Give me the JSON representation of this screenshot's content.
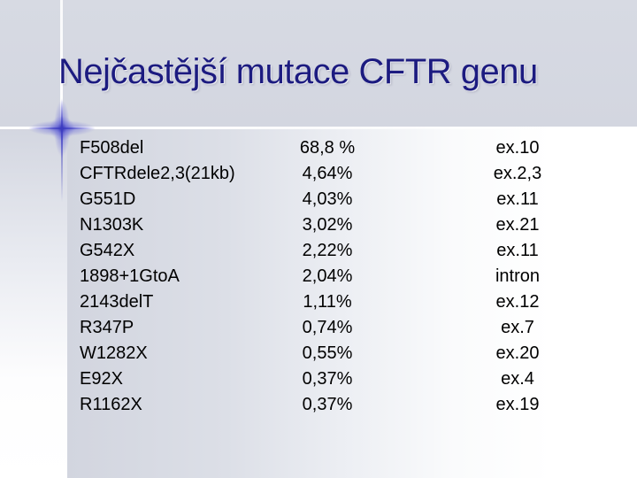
{
  "slide": {
    "title": "Nejčastější mutace CFTR genu",
    "table": {
      "rows": [
        {
          "mutation": "F508del",
          "frequency": "68,8 %",
          "location": "ex.10"
        },
        {
          "mutation": "CFTRdele2,3(21kb)",
          "frequency": "4,64%",
          "location": "ex.2,3"
        },
        {
          "mutation": "G551D",
          "frequency": "4,03%",
          "location": "ex.11"
        },
        {
          "mutation": "N1303K",
          "frequency": "3,02%",
          "location": "ex.21"
        },
        {
          "mutation": "G542X",
          "frequency": "2,22%",
          "location": "ex.11"
        },
        {
          "mutation": "1898+1GtoA",
          "frequency": "2,04%",
          "location": "intron"
        },
        {
          "mutation": "2143delT",
          "frequency": "1,11%",
          "location": "ex.12"
        },
        {
          "mutation": "R347P",
          "frequency": "0,74%",
          "location": "ex.7"
        },
        {
          "mutation": "W1282X",
          "frequency": "0,55%",
          "location": "ex.20"
        },
        {
          "mutation": "E92X",
          "frequency": "0,37%",
          "location": "ex.4"
        },
        {
          "mutation": "R1162X",
          "frequency": "0,37%",
          "location": "ex.19"
        }
      ]
    },
    "colors": {
      "title_text": "#1c1b80",
      "body_text": "#000000",
      "band_background": "#d5d8e1",
      "accent_blue": "#3e3ebe"
    }
  }
}
